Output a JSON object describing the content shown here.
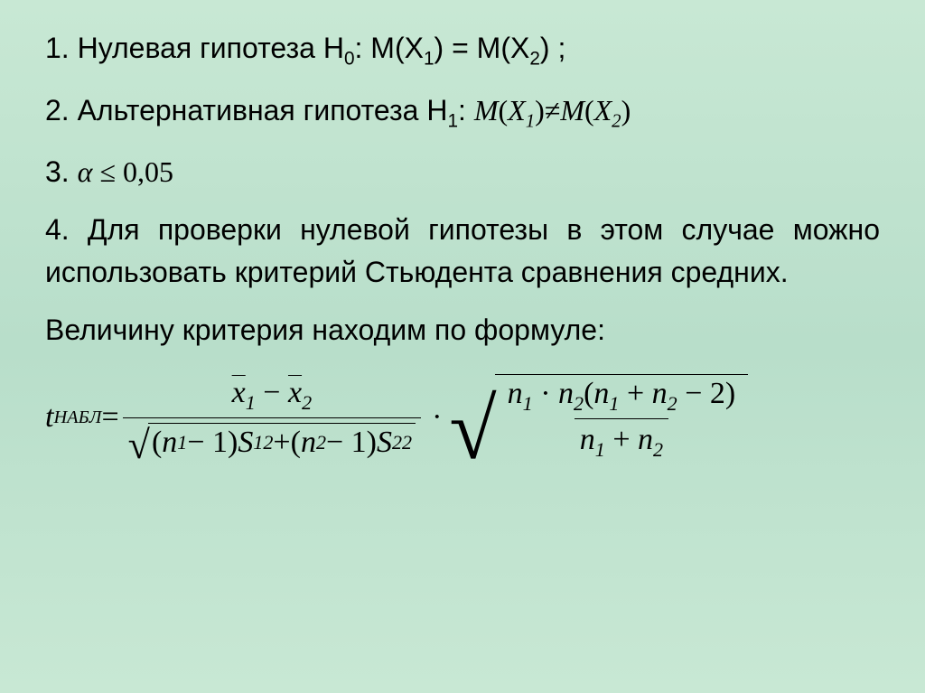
{
  "slide": {
    "background_gradient": [
      "#c8e8d4",
      "#b8deca",
      "#c8e8d4"
    ],
    "text_color": "#000000",
    "body_fontsize": 32,
    "formula_fontsize": 34,
    "font_body": "Arial",
    "font_math": "Times New Roman"
  },
  "items": {
    "l1_num": "1.",
    "l1_text_a": "Нулевая гипотеза Н",
    "l1_sub0": "0",
    "l1_text_b": ": М(Х",
    "l1_sub1": "1",
    "l1_text_c": ") = М(Х",
    "l1_sub2": "2",
    "l1_text_d": ") ;",
    "l2_num": "2.",
    "l2_text_a": "Альтернативная гипотеза Н",
    "l2_sub1": "1",
    "l2_text_b": ": ",
    "l2_math_a": "M",
    "l2_math_paren1": "(",
    "l2_math_x1": "X",
    "l2_math_x1sub": "1",
    "l2_math_paren2": ")",
    "l2_math_neq": "≠",
    "l2_math_b": "M",
    "l2_math_paren3": "(",
    "l2_math_x2": "X",
    "l2_math_x2sub": "2",
    "l2_math_paren4": ")",
    "l3_num": "3.",
    "l3_alpha": "α",
    "l3_le": " ≤ ",
    "l3_val": "0,05",
    "l4_num": "4.",
    "l4_text": "Для проверки нулевой гипотезы в этом случае можно использовать критерий Стьюдента сравнения средних.",
    "l5_text": "Величину критерия находим по формуле:"
  },
  "formula": {
    "t": "t",
    "t_sub": "НАБЛ",
    "eq": " = ",
    "num_x1": "x",
    "num_s1": "1",
    "num_minus": " − ",
    "num_x2": "x",
    "num_s2": "2",
    "den_open1": "(",
    "den_n1": "n",
    "den_n1sub": "1",
    "den_m1": " − 1",
    "den_close1": ")",
    "den_S1": "S",
    "den_S1sub": "1",
    "den_S1sup": "2",
    "den_plus": " + ",
    "den_open2": "(",
    "den_n2": "n",
    "den_n2sub": "2",
    "den_m2": " − 1",
    "den_close2": ")",
    "den_S2": "S",
    "den_S2sub": "2",
    "den_S2sup": "2",
    "mult": "·",
    "r_num_n1": "n",
    "r_num_n1sub": "1",
    "r_num_d1": " · ",
    "r_num_n2": "n",
    "r_num_n2sub": "2",
    "r_num_open": "(",
    "r_num_n1b": "n",
    "r_num_n1bsub": "1",
    "r_num_p1": " + ",
    "r_num_n2b": "n",
    "r_num_n2bsub": "2",
    "r_num_m2": " − 2",
    "r_num_close": ")",
    "r_den_n1": "n",
    "r_den_n1sub": "1",
    "r_den_plus": " + ",
    "r_den_n2": "n",
    "r_den_n2sub": "2"
  }
}
